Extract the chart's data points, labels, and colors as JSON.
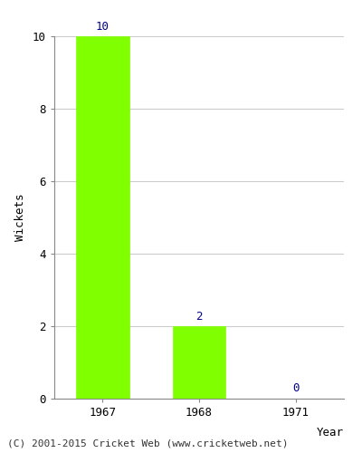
{
  "years": [
    "1967",
    "1968",
    "1971"
  ],
  "values": [
    10,
    2,
    0
  ],
  "bar_color": "#7FFF00",
  "bar_edgecolor": "#7FFF00",
  "xlabel": "Year",
  "ylabel": "Wickets",
  "ylim": [
    0,
    10
  ],
  "yticks": [
    0,
    2,
    4,
    6,
    8,
    10
  ],
  "label_color": "#00008B",
  "label_fontsize": 9,
  "axis_label_fontsize": 9,
  "tick_fontsize": 9,
  "footer_text": "(C) 2001-2015 Cricket Web (www.cricketweb.net)",
  "footer_fontsize": 8,
  "background_color": "#ffffff",
  "bar_width": 0.55,
  "grid_color": "#cccccc"
}
